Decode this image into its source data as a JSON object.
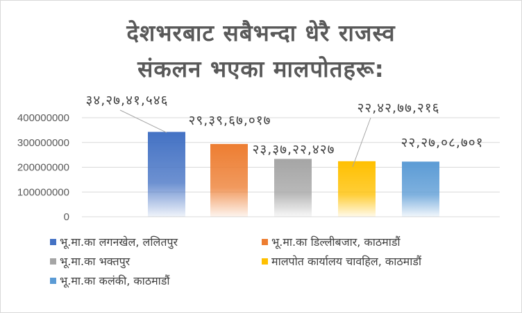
{
  "chart_data": {
    "type": "bar",
    "title_lines": [
      "देशभरबाट सबैभन्दा धेरै राजस्व",
      "संकलन भएका मालपोतहरू:"
    ],
    "categories": [
      "भू.मा.का लगनखेल, ललितपुर",
      "भू.मा.का डिल्लीबजार, काठमाडौं",
      "भू.मा.का भक्तपुर",
      "मालपोत कार्यालय चावहिल, काठमाडौं",
      "भू.मा.का कलंकी, काठमाडौं"
    ],
    "values": [
      342741546,
      293967017,
      233722427,
      224277216,
      222708701
    ],
    "data_labels": [
      "३४,२७,४१,५४६",
      "२९,३९,६७,०१७",
      "२३,३७,२२,४२७",
      "२२,४२,७७,२१६",
      "२२,२७,०८,७०१"
    ],
    "colors": [
      "#4472c4",
      "#ed7d31",
      "#a5a5a5",
      "#ffc000",
      "#5b9bd5"
    ],
    "yticks": [
      "0",
      "100000000",
      "200000000",
      "300000000",
      "400000000"
    ],
    "ylim": [
      0,
      400000000
    ],
    "grid": true,
    "legend": "bottom"
  }
}
